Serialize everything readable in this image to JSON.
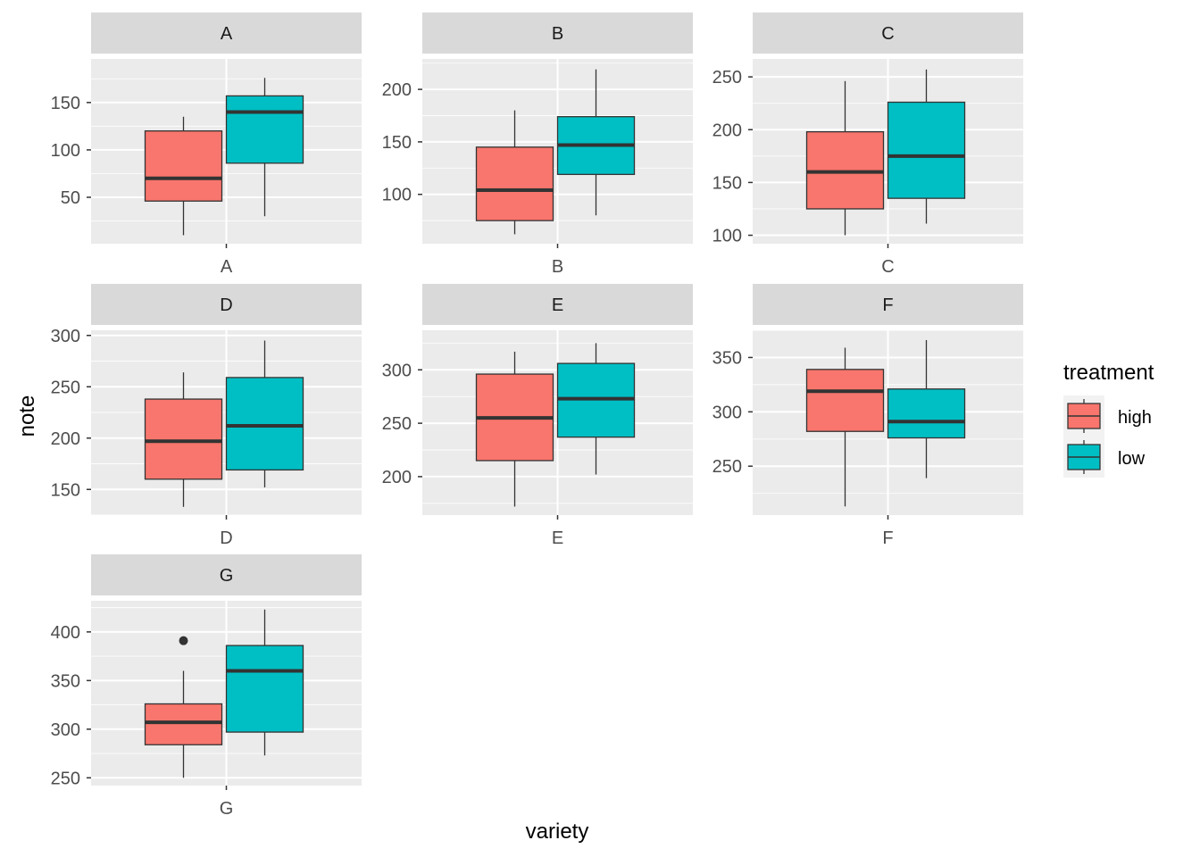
{
  "chart_data": {
    "type": "boxplot",
    "facet_by": "variety",
    "xlabel": "variety",
    "ylabel": "note",
    "legend": {
      "title": "treatment",
      "position": "right",
      "entries": [
        {
          "name": "high",
          "color": "#F8766D"
        },
        {
          "name": "low",
          "color": "#00BFC4"
        }
      ]
    },
    "grid": true,
    "panel_background": "#EBEBEB",
    "strip_background": "#D9D9D9",
    "facets": [
      {
        "label": "A",
        "category": "A",
        "ylim": [
          1,
          196
        ],
        "yticks": [
          50,
          100,
          150
        ],
        "boxes": [
          {
            "group": "high",
            "min": 10,
            "q1": 46,
            "median": 70,
            "q3": 120,
            "max": 135,
            "outliers": []
          },
          {
            "group": "low",
            "min": 30,
            "q1": 86,
            "median": 140,
            "q3": 157,
            "max": 176,
            "outliers": []
          }
        ]
      },
      {
        "label": "B",
        "category": "B",
        "ylim": [
          53,
          229
        ],
        "yticks": [
          100,
          150,
          200
        ],
        "boxes": [
          {
            "group": "high",
            "min": 62,
            "q1": 75,
            "median": 104,
            "q3": 145,
            "max": 180,
            "outliers": []
          },
          {
            "group": "low",
            "min": 80,
            "q1": 119,
            "median": 147,
            "q3": 174,
            "max": 219,
            "outliers": []
          }
        ]
      },
      {
        "label": "C",
        "category": "C",
        "ylim": [
          92,
          267
        ],
        "yticks": [
          100,
          150,
          200,
          250
        ],
        "boxes": [
          {
            "group": "high",
            "min": 100,
            "q1": 125,
            "median": 160,
            "q3": 198,
            "max": 246,
            "outliers": []
          },
          {
            "group": "low",
            "min": 111,
            "q1": 135,
            "median": 175,
            "q3": 226,
            "max": 257,
            "outliers": []
          }
        ]
      },
      {
        "label": "D",
        "category": "D",
        "ylim": [
          125,
          305
        ],
        "yticks": [
          150,
          200,
          250,
          300
        ],
        "boxes": [
          {
            "group": "high",
            "min": 133,
            "q1": 160,
            "median": 197,
            "q3": 238,
            "max": 264,
            "outliers": []
          },
          {
            "group": "low",
            "min": 152,
            "q1": 169,
            "median": 212,
            "q3": 259,
            "max": 295,
            "outliers": []
          }
        ]
      },
      {
        "label": "E",
        "category": "E",
        "ylim": [
          164,
          337
        ],
        "yticks": [
          200,
          250,
          300
        ],
        "boxes": [
          {
            "group": "high",
            "min": 172,
            "q1": 215,
            "median": 255,
            "q3": 296,
            "max": 317,
            "outliers": []
          },
          {
            "group": "low",
            "min": 202,
            "q1": 237,
            "median": 273,
            "q3": 306,
            "max": 325,
            "outliers": []
          }
        ]
      },
      {
        "label": "F",
        "category": "F",
        "ylim": [
          205,
          375
        ],
        "yticks": [
          250,
          300,
          350
        ],
        "boxes": [
          {
            "group": "high",
            "min": 213,
            "q1": 282,
            "median": 319,
            "q3": 339,
            "max": 359,
            "outliers": []
          },
          {
            "group": "low",
            "min": 239,
            "q1": 276,
            "median": 291,
            "q3": 321,
            "max": 366,
            "outliers": []
          }
        ]
      },
      {
        "label": "G",
        "category": "G",
        "ylim": [
          242,
          432
        ],
        "yticks": [
          250,
          300,
          350,
          400
        ],
        "boxes": [
          {
            "group": "high",
            "min": 250,
            "q1": 284,
            "median": 307,
            "q3": 326,
            "max": 360,
            "outliers": [
              391
            ]
          },
          {
            "group": "low",
            "min": 273,
            "q1": 297,
            "median": 360,
            "q3": 386,
            "max": 423,
            "outliers": []
          }
        ]
      }
    ]
  }
}
